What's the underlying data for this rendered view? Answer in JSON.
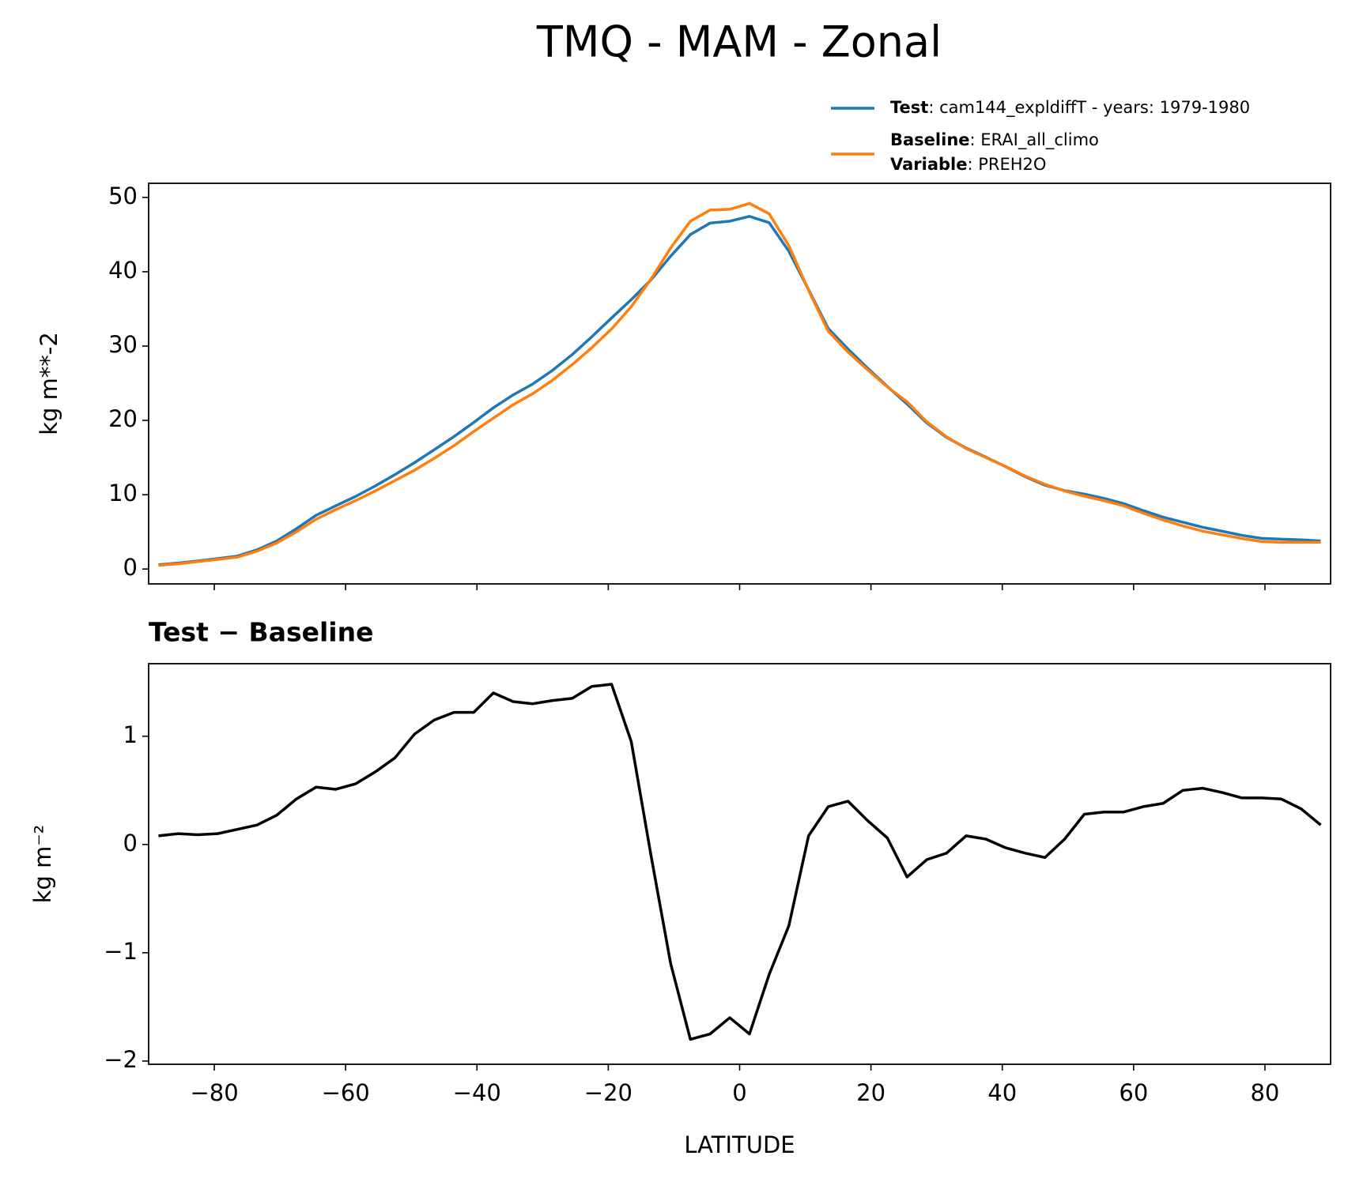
{
  "title": "TMQ - MAM - Zonal",
  "chart_data": [
    {
      "type": "line",
      "ylabel": "kg m**-2",
      "x": [
        -88.5,
        -85.5,
        -82.5,
        -79.5,
        -76.5,
        -73.5,
        -70.5,
        -67.5,
        -64.5,
        -61.5,
        -58.5,
        -55.5,
        -52.5,
        -49.5,
        -46.5,
        -43.5,
        -40.5,
        -37.5,
        -34.5,
        -31.5,
        -28.5,
        -25.5,
        -22.5,
        -19.5,
        -16.5,
        -13.5,
        -10.5,
        -7.5,
        -4.5,
        -1.5,
        1.5,
        4.5,
        7.5,
        10.5,
        13.5,
        16.5,
        19.5,
        22.5,
        25.5,
        28.5,
        31.5,
        34.5,
        37.5,
        40.5,
        43.5,
        46.5,
        49.5,
        52.5,
        55.5,
        58.5,
        61.5,
        64.5,
        67.5,
        70.5,
        73.5,
        76.5,
        79.5,
        82.5,
        85.5,
        88.5
      ],
      "series": [
        {
          "name": "Test",
          "label": ": cam144_expldiffT - years: 1979-1980",
          "color": "#1f77b4",
          "values": [
            0.58,
            0.8,
            1.09,
            1.4,
            1.74,
            2.58,
            3.77,
            5.42,
            7.23,
            8.51,
            9.76,
            11.17,
            12.7,
            14.32,
            16.05,
            17.82,
            19.72,
            21.7,
            23.42,
            24.9,
            26.73,
            28.85,
            31.26,
            33.78,
            36.25,
            38.9,
            42.1,
            45.0,
            46.55,
            46.8,
            47.45,
            46.6,
            42.75,
            37.58,
            32.35,
            29.6,
            27.02,
            24.56,
            22.2,
            19.66,
            17.72,
            16.28,
            15.05,
            13.77,
            12.42,
            11.28,
            10.55,
            10.08,
            9.5,
            8.8,
            7.85,
            6.98,
            6.3,
            5.62,
            5.08,
            4.53,
            4.13,
            4.02,
            3.93,
            3.78
          ]
        },
        {
          "name": "Baseline",
          "label": ": ERAI_all_climo",
          "extra_name": "Variable",
          "extra_label": ": PREH2O",
          "color": "#ff7f0e",
          "values": [
            0.5,
            0.7,
            1.0,
            1.3,
            1.6,
            2.4,
            3.5,
            5.0,
            6.7,
            8.0,
            9.2,
            10.5,
            11.9,
            13.3,
            14.9,
            16.6,
            18.5,
            20.3,
            22.1,
            23.6,
            25.4,
            27.5,
            29.8,
            32.3,
            35.3,
            39.0,
            43.2,
            46.8,
            48.3,
            48.4,
            49.2,
            47.8,
            43.5,
            37.5,
            32.0,
            29.2,
            26.8,
            24.5,
            22.5,
            19.8,
            17.8,
            16.2,
            15.0,
            13.8,
            12.5,
            11.4,
            10.5,
            9.8,
            9.2,
            8.5,
            7.5,
            6.6,
            5.8,
            5.1,
            4.6,
            4.1,
            3.7,
            3.6,
            3.6,
            3.6
          ]
        }
      ],
      "xlim": [
        -90,
        90
      ],
      "xticks": [
        -80,
        -60,
        -40,
        -20,
        0,
        20,
        40,
        60,
        80
      ],
      "ylim": [
        -2,
        51.9
      ],
      "yticks": [
        0,
        10,
        20,
        30,
        40,
        50
      ]
    },
    {
      "type": "line",
      "title": "Test − Baseline",
      "ylabel": "kg m⁻²",
      "xlabel": "LATITUDE",
      "x": [
        -88.5,
        -85.5,
        -82.5,
        -79.5,
        -76.5,
        -73.5,
        -70.5,
        -67.5,
        -64.5,
        -61.5,
        -58.5,
        -55.5,
        -52.5,
        -49.5,
        -46.5,
        -43.5,
        -40.5,
        -37.5,
        -34.5,
        -31.5,
        -28.5,
        -25.5,
        -22.5,
        -19.5,
        -16.5,
        -13.5,
        -10.5,
        -7.5,
        -4.5,
        -1.5,
        1.5,
        4.5,
        7.5,
        10.5,
        13.5,
        16.5,
        19.5,
        22.5,
        25.5,
        28.5,
        31.5,
        34.5,
        37.5,
        40.5,
        43.5,
        46.5,
        49.5,
        52.5,
        55.5,
        58.5,
        61.5,
        64.5,
        67.5,
        70.5,
        73.5,
        76.5,
        79.5,
        82.5,
        85.5,
        88.5
      ],
      "color": "#000000",
      "values": [
        0.08,
        0.1,
        0.09,
        0.1,
        0.14,
        0.18,
        0.27,
        0.42,
        0.53,
        0.51,
        0.56,
        0.67,
        0.8,
        1.02,
        1.15,
        1.22,
        1.22,
        1.4,
        1.32,
        1.3,
        1.33,
        1.35,
        1.46,
        1.48,
        0.95,
        -0.1,
        -1.1,
        -1.8,
        -1.75,
        -1.6,
        -1.75,
        -1.2,
        -0.75,
        0.08,
        0.35,
        0.4,
        0.22,
        0.06,
        -0.3,
        -0.14,
        -0.08,
        0.08,
        0.05,
        -0.03,
        -0.08,
        -0.12,
        0.05,
        0.28,
        0.3,
        0.3,
        0.35,
        0.38,
        0.5,
        0.52,
        0.48,
        0.43,
        0.43,
        0.42,
        0.33,
        0.18
      ],
      "xlim": [
        -90,
        90
      ],
      "xticks": [
        {
          "value": -80,
          "label": "−80"
        },
        {
          "value": -60,
          "label": "−60"
        },
        {
          "value": -40,
          "label": "−40"
        },
        {
          "value": -20,
          "label": "−20"
        },
        0,
        20,
        40,
        60,
        80
      ],
      "ylim": [
        -2.03,
        1.67
      ],
      "yticks": [
        {
          "value": -2,
          "label": "−2"
        },
        {
          "value": -1,
          "label": "−1"
        },
        0,
        1
      ]
    }
  ]
}
